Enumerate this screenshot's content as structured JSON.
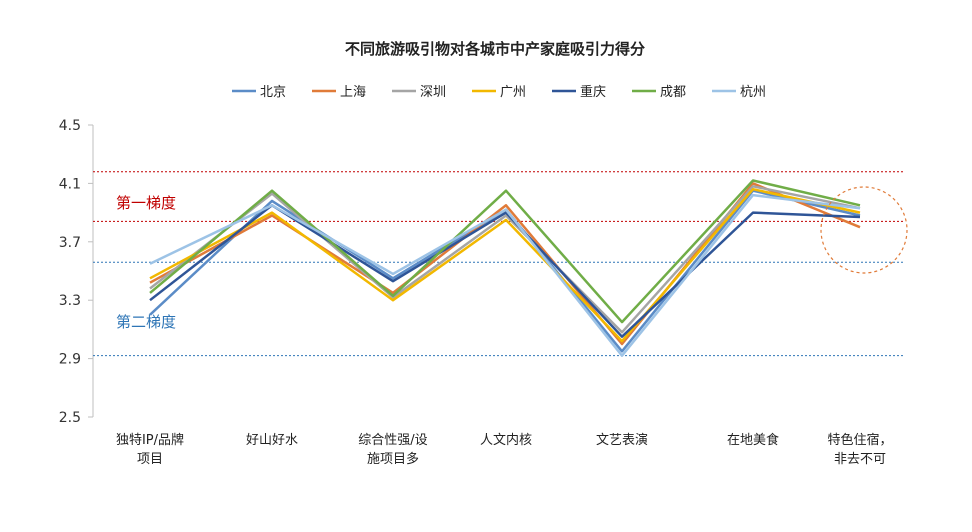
{
  "chart_data": {
    "type": "line",
    "title": "不同旅游吸引物对各城市中产家庭吸引力得分",
    "categories": [
      [
        "独特IP/品牌",
        "项目"
      ],
      [
        "好山好水"
      ],
      [
        "综合性强/设",
        "施项目多"
      ],
      [
        "人文内核"
      ],
      [
        "文艺表演"
      ],
      [
        "在地美食"
      ],
      [
        "特色住宿，",
        "非去不可"
      ]
    ],
    "ylim": [
      2.5,
      4.5
    ],
    "yticks": [
      "2.5",
      "2.9",
      "3.3",
      "3.7",
      "4.1",
      "4.5"
    ],
    "ytick_values": [
      2.5,
      2.9,
      3.3,
      3.7,
      4.1,
      4.5
    ],
    "series": [
      {
        "name": "北京",
        "color": "#5b8cc7",
        "values": [
          3.2,
          3.98,
          3.45,
          3.92,
          2.95,
          4.05,
          3.88
        ]
      },
      {
        "name": "上海",
        "color": "#e07b39",
        "values": [
          3.42,
          3.88,
          3.35,
          3.95,
          3.0,
          4.1,
          3.8
        ]
      },
      {
        "name": "深圳",
        "color": "#a5a5a5",
        "values": [
          3.38,
          4.03,
          3.32,
          3.88,
          3.08,
          4.08,
          3.93
        ]
      },
      {
        "name": "广州",
        "color": "#f2b800",
        "values": [
          3.45,
          3.9,
          3.3,
          3.85,
          3.02,
          4.06,
          3.9
        ]
      },
      {
        "name": "重庆",
        "color": "#2f5597",
        "values": [
          3.3,
          3.95,
          3.43,
          3.9,
          3.05,
          3.9,
          3.87
        ]
      },
      {
        "name": "成都",
        "color": "#70ad47",
        "values": [
          3.35,
          4.05,
          3.33,
          4.05,
          3.15,
          4.12,
          3.95
        ]
      },
      {
        "name": "杭州",
        "color": "#9dc3e6",
        "values": [
          3.55,
          3.95,
          3.48,
          3.92,
          2.92,
          4.02,
          3.93
        ]
      }
    ],
    "reference_lines": [
      {
        "value": 4.18,
        "color": "#c00000"
      },
      {
        "value": 3.84,
        "color": "#c00000"
      },
      {
        "value": 3.56,
        "color": "#2e75b6"
      },
      {
        "value": 2.92,
        "color": "#2e75b6"
      }
    ],
    "annotations": [
      {
        "text": "第一梯度",
        "color": "#c00000"
      },
      {
        "text": "第二梯度",
        "color": "#2e75b6"
      }
    ],
    "highlight_circle_color": "#e07b39",
    "legend_position": "top",
    "grid": false
  }
}
